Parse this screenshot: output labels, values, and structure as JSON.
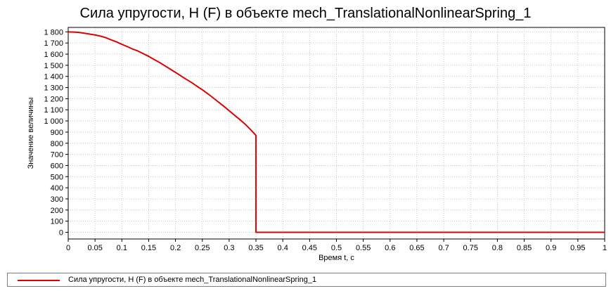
{
  "chart_data": {
    "type": "line",
    "title": "Сила упругости, Н (F) в объекте mech_TranslationalNonlinearSpring_1",
    "xlabel": "Время t, с",
    "ylabel": "Значение величины",
    "xlim": [
      0,
      1
    ],
    "ylim": [
      -60,
      1840
    ],
    "grid": true,
    "legend_position": "bottom",
    "x_ticks": [
      0,
      0.05,
      0.1,
      0.15,
      0.2,
      0.25,
      0.3,
      0.35,
      0.4,
      0.45,
      0.5,
      0.55,
      0.6,
      0.65,
      0.7,
      0.75,
      0.8,
      0.85,
      0.9,
      0.95,
      1
    ],
    "x_tick_labels": [
      "0",
      "0.05",
      "0.1",
      "0.15",
      "0.2",
      "0.25",
      "0.3",
      "0.35",
      "0.4",
      "0.45",
      "0.5",
      "0.55",
      "0.6",
      "0.65",
      "0.7",
      "0.75",
      "0.8",
      "0.85",
      "0.9",
      "0.95",
      "1"
    ],
    "y_ticks": [
      0,
      100,
      200,
      300,
      400,
      500,
      600,
      700,
      800,
      900,
      1000,
      1100,
      1200,
      1300,
      1400,
      1500,
      1600,
      1700,
      1800
    ],
    "y_tick_labels": [
      "0",
      "100",
      "200",
      "300",
      "400",
      "500",
      "600",
      "700",
      "800",
      "900",
      "1 000",
      "1 100",
      "1 200",
      "1 300",
      "1 400",
      "1 500",
      "1 600",
      "1 700",
      "1 800"
    ],
    "series": [
      {
        "name": "Сила упругости, Н (F) в объекте mech_TranslationalNonlinearSpring_1",
        "color": "#e00000",
        "x": [
          0,
          0.01,
          0.02,
          0.03,
          0.04,
          0.05,
          0.06,
          0.07,
          0.08,
          0.09,
          0.1,
          0.11,
          0.12,
          0.13,
          0.14,
          0.15,
          0.16,
          0.17,
          0.18,
          0.19,
          0.2,
          0.21,
          0.22,
          0.23,
          0.24,
          0.25,
          0.26,
          0.27,
          0.28,
          0.29,
          0.3,
          0.31,
          0.32,
          0.33,
          0.34,
          0.35,
          0.35,
          0.4,
          0.5,
          0.6,
          0.7,
          0.8,
          0.9,
          1.0
        ],
        "y": [
          1800,
          1798,
          1795,
          1788,
          1780,
          1772,
          1762,
          1748,
          1728,
          1710,
          1688,
          1668,
          1646,
          1628,
          1604,
          1580,
          1552,
          1526,
          1496,
          1466,
          1436,
          1405,
          1374,
          1345,
          1312,
          1280,
          1245,
          1208,
          1170,
          1132,
          1092,
          1052,
          1012,
          970,
          922,
          870,
          0,
          0,
          0,
          0,
          0,
          0,
          0,
          0
        ]
      }
    ]
  },
  "legend": {
    "label": "Сила упругости, Н (F) в объекте mech_TranslationalNonlinearSpring_1",
    "color": "#e00000"
  }
}
